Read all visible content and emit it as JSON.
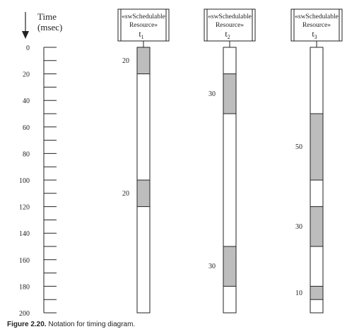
{
  "time_axis": {
    "label_line1": "Time",
    "label_line2": "(msec)",
    "min": 0,
    "max": 200,
    "labeled_ticks": [
      0,
      20,
      40,
      60,
      80,
      100,
      120,
      140,
      160,
      180,
      200
    ],
    "minor_step": 10
  },
  "resources": [
    {
      "stereotype_line1": "«swSchedulable",
      "stereotype_line2": "Resource»",
      "name": "t",
      "subscript": "1",
      "segments": [
        {
          "start": 0,
          "end": 20,
          "label": "20"
        },
        {
          "start": 100,
          "end": 120,
          "label": "20"
        }
      ]
    },
    {
      "stereotype_line1": "«swSchedulable",
      "stereotype_line2": "Resource»",
      "name": "t",
      "subscript": "2",
      "segments": [
        {
          "start": 20,
          "end": 50,
          "label": "30"
        },
        {
          "start": 150,
          "end": 180,
          "label": "30"
        }
      ]
    },
    {
      "stereotype_line1": "«swSchedulable",
      "stereotype_line2": "Resource»",
      "name": "t",
      "subscript": "3",
      "segments": [
        {
          "start": 50,
          "end": 100,
          "label": "50"
        },
        {
          "start": 120,
          "end": 150,
          "label": "30"
        },
        {
          "start": 180,
          "end": 190,
          "label": "10"
        }
      ]
    }
  ],
  "caption": {
    "figure_label": "Figure 2.20.",
    "text": " Notation for timing diagram."
  },
  "colors": {
    "busy_fill": "#bdbdbd",
    "lifeline_fill": "#ffffff",
    "stroke": "#222222"
  }
}
